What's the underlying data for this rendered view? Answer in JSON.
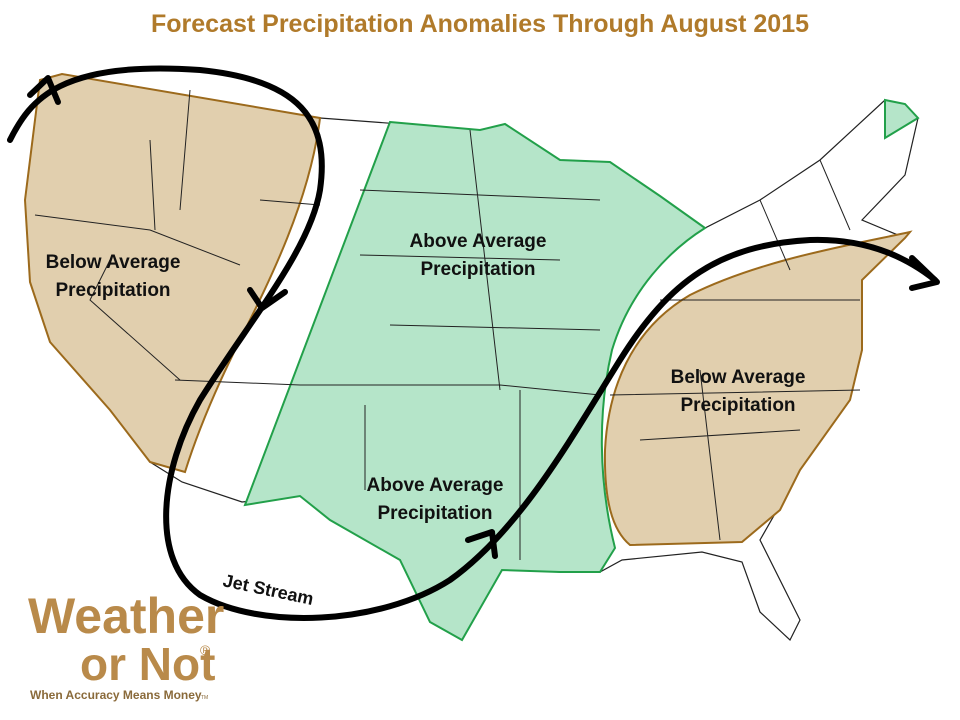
{
  "title": "Forecast Precipitation Anomalies Through August 2015",
  "regions": [
    {
      "label_lines": [
        "Below Average",
        "Precipitation"
      ]
    },
    {
      "label_lines": [
        "Above Average",
        "Precipitation"
      ]
    },
    {
      "label_lines": [
        "Below Average",
        "Precipitation"
      ]
    },
    {
      "label_lines": [
        "Above Average",
        "Precipitation"
      ]
    }
  ],
  "jet_stream_label": "Jet Stream",
  "logo": {
    "name_line1": "Weather",
    "name_line2": "or Not",
    "registered": "®",
    "tagline": "When Accuracy Means Money",
    "trademark": "TM"
  }
}
